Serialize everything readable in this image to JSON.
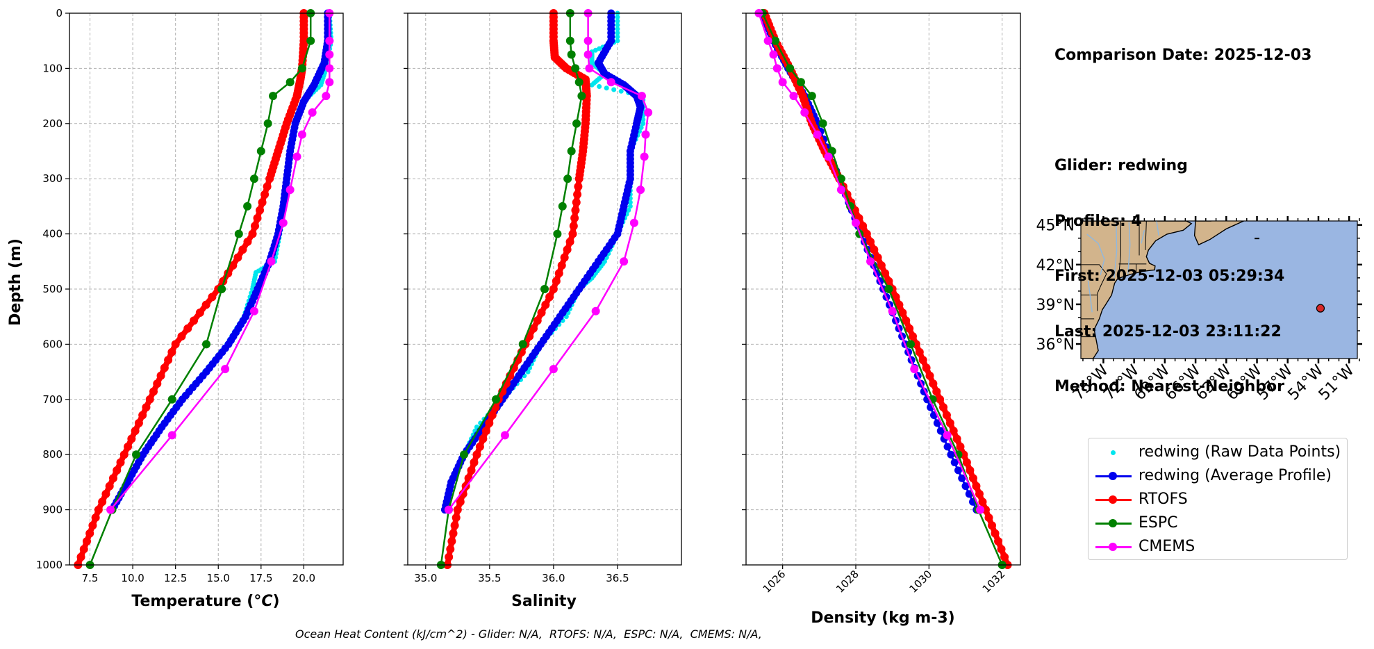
{
  "info": {
    "comparison_date": "Comparison Date: 2025-12-03",
    "glider": "Glider: redwing",
    "profiles": "Profiles: 4",
    "first": "First: 2025-12-03 05:29:34",
    "last": "Last: 2025-12-03 23:11:22",
    "method": "Method: Nearest-Neighbor"
  },
  "caption": "Ocean Heat Content (kJ/cm^2) - Glider: N/A,  RTOFS: N/A,  ESPC: N/A,  CMEMS: N/A,",
  "legend": [
    {
      "key": "raw",
      "label": "redwing (Raw Data Points)",
      "color": "#00e5ee"
    },
    {
      "key": "avg",
      "label": "redwing (Average Profile)",
      "color": "#0000ee"
    },
    {
      "key": "rtofs",
      "label": "RTOFS",
      "color": "#ff0000"
    },
    {
      "key": "espc",
      "label": "ESPC",
      "color": "#008000"
    },
    {
      "key": "cmems",
      "label": "CMEMS",
      "color": "#ff00ff"
    }
  ],
  "colors": {
    "raw": "#00e5ee",
    "avg": "#0000ee",
    "rtofs": "#ff0000",
    "espc": "#008000",
    "cmems": "#ff00ff",
    "land": "#d2b48c",
    "ocean": "#9ab6e2",
    "glider_marker": "#d62728"
  },
  "chart_data": [
    {
      "type": "line",
      "title": "",
      "xlabel": "Temperature (°C)",
      "ylabel": "Depth (m)",
      "xlim": [
        6.3,
        22.3
      ],
      "ylim": [
        1000,
        0
      ],
      "xticks": [
        "7.5",
        "10.0",
        "12.5",
        "15.0",
        "17.5",
        "20.0"
      ],
      "xtick_values": [
        7.5,
        10.0,
        12.5,
        15.0,
        17.5,
        20.0
      ],
      "yticks": [
        "0",
        "100",
        "200",
        "300",
        "400",
        "500",
        "600",
        "700",
        "800",
        "900",
        "1000"
      ],
      "grid": true,
      "series": [
        {
          "name": "redwing (Raw Data Points)",
          "key": "raw",
          "depth": [
            0,
            50,
            100,
            130,
            160,
            200,
            250,
            300,
            350,
            400,
            450,
            470,
            500,
            550,
            600,
            650,
            700,
            750,
            800,
            850,
            900
          ],
          "values": [
            21.5,
            21.6,
            21.3,
            21.0,
            20.0,
            19.5,
            19.2,
            19.0,
            18.9,
            18.6,
            18.3,
            17.2,
            17.0,
            16.5,
            15.5,
            14.2,
            12.8,
            11.6,
            10.6,
            9.6,
            8.8
          ]
        },
        {
          "name": "redwing (Average Profile)",
          "key": "avg",
          "depth": [
            0,
            50,
            90,
            130,
            160,
            200,
            250,
            300,
            350,
            400,
            450,
            500,
            550,
            600,
            650,
            700,
            750,
            800,
            850,
            900
          ],
          "values": [
            21.4,
            21.4,
            21.2,
            20.6,
            20.0,
            19.5,
            19.2,
            19.0,
            18.8,
            18.5,
            18.0,
            17.3,
            16.6,
            15.6,
            14.3,
            12.9,
            11.7,
            10.6,
            9.7,
            8.8
          ]
        },
        {
          "name": "RTOFS",
          "key": "rtofs",
          "depth": [
            0,
            50,
            100,
            120,
            150,
            200,
            250,
            300,
            400,
            500,
            600,
            700,
            800,
            900,
            1000
          ],
          "values": [
            20.0,
            20.0,
            19.9,
            19.8,
            19.6,
            19.0,
            18.5,
            18.0,
            17.0,
            15.0,
            12.5,
            11.0,
            9.5,
            8.0,
            6.8
          ]
        },
        {
          "name": "ESPC",
          "key": "espc",
          "depth": [
            0,
            50,
            100,
            125,
            150,
            200,
            250,
            300,
            350,
            400,
            500,
            600,
            700,
            800,
            900,
            1000
          ],
          "values": [
            20.4,
            20.4,
            19.9,
            19.2,
            18.2,
            17.9,
            17.5,
            17.1,
            16.7,
            16.2,
            15.2,
            14.3,
            12.3,
            10.2,
            8.8,
            7.5
          ]
        },
        {
          "name": "CMEMS",
          "key": "cmems",
          "depth": [
            0,
            50,
            75,
            100,
            125,
            150,
            180,
            220,
            260,
            320,
            380,
            450,
            540,
            645,
            765,
            900
          ],
          "values": [
            21.5,
            21.5,
            21.5,
            21.5,
            21.5,
            21.3,
            20.5,
            19.9,
            19.6,
            19.2,
            18.8,
            18.1,
            17.1,
            15.4,
            12.3,
            8.7
          ]
        }
      ]
    },
    {
      "type": "line",
      "title": "",
      "xlabel": "Salinity",
      "ylabel": "",
      "xlim": [
        34.86,
        37.0
      ],
      "ylim": [
        1000,
        0
      ],
      "xticks": [
        "35.0",
        "35.5",
        "36.0",
        "36.5"
      ],
      "xtick_values": [
        35.0,
        35.5,
        36.0,
        36.5
      ],
      "yticks": [
        "0",
        "100",
        "200",
        "300",
        "400",
        "500",
        "600",
        "700",
        "800",
        "900",
        "1000"
      ],
      "grid": true,
      "series": [
        {
          "name": "redwing (Raw Data Points)",
          "key": "raw",
          "depth": [
            0,
            50,
            70,
            90,
            110,
            130,
            150,
            200,
            250,
            300,
            350,
            400,
            450,
            480,
            500,
            550,
            600,
            650,
            700,
            750,
            800,
            850,
            900
          ],
          "values": [
            36.5,
            36.5,
            36.3,
            36.3,
            36.4,
            36.3,
            36.7,
            36.7,
            36.6,
            36.6,
            36.6,
            36.5,
            36.4,
            36.3,
            36.2,
            36.1,
            35.9,
            35.8,
            35.6,
            35.4,
            35.3,
            35.2,
            35.15
          ]
        },
        {
          "name": "redwing (Average Profile)",
          "key": "avg",
          "depth": [
            0,
            50,
            90,
            110,
            130,
            150,
            170,
            200,
            250,
            300,
            350,
            400,
            450,
            500,
            550,
            600,
            650,
            700,
            750,
            800,
            850,
            900
          ],
          "values": [
            36.45,
            36.45,
            36.35,
            36.4,
            36.55,
            36.65,
            36.68,
            36.65,
            36.6,
            36.6,
            36.55,
            36.5,
            36.35,
            36.2,
            36.05,
            35.9,
            35.75,
            35.6,
            35.45,
            35.3,
            35.2,
            35.15
          ]
        },
        {
          "name": "RTOFS",
          "key": "rtofs",
          "depth": [
            0,
            50,
            80,
            100,
            120,
            150,
            200,
            250,
            300,
            400,
            500,
            600,
            700,
            800,
            900,
            1000
          ],
          "values": [
            36.0,
            36.0,
            36.01,
            36.1,
            36.25,
            36.26,
            36.25,
            36.23,
            36.2,
            36.15,
            36.0,
            35.78,
            35.57,
            35.4,
            35.25,
            35.17
          ]
        },
        {
          "name": "ESPC",
          "key": "espc",
          "depth": [
            0,
            50,
            75,
            100,
            125,
            150,
            200,
            250,
            300,
            350,
            400,
            500,
            600,
            700,
            800,
            900,
            1000
          ],
          "values": [
            36.13,
            36.13,
            36.14,
            36.17,
            36.2,
            36.22,
            36.18,
            36.14,
            36.11,
            36.07,
            36.03,
            35.93,
            35.76,
            35.55,
            35.3,
            35.18,
            35.12
          ]
        },
        {
          "name": "CMEMS",
          "key": "cmems",
          "depth": [
            0,
            50,
            75,
            100,
            125,
            150,
            180,
            220,
            260,
            320,
            380,
            450,
            540,
            645,
            765,
            900
          ],
          "values": [
            36.27,
            36.27,
            36.27,
            36.28,
            36.45,
            36.69,
            36.74,
            36.72,
            36.71,
            36.68,
            36.63,
            36.55,
            36.33,
            36.0,
            35.62,
            35.18
          ]
        }
      ]
    },
    {
      "type": "line",
      "title": "",
      "xlabel": "Density (kg m-3)",
      "ylabel": "",
      "xlim": [
        1025.0,
        1032.5
      ],
      "ylim": [
        1000,
        0
      ],
      "xticks": [
        "1026",
        "1028",
        "1030",
        "1032"
      ],
      "xtick_values": [
        1026,
        1028,
        1030,
        1032
      ],
      "yticks": [
        "0",
        "100",
        "200",
        "300",
        "400",
        "500",
        "600",
        "700",
        "800",
        "900",
        "1000"
      ],
      "grid": true,
      "series": [
        {
          "name": "redwing (Raw Data Points)",
          "key": "raw",
          "depth": [
            0,
            50,
            100,
            150,
            200,
            300,
            400,
            500,
            600,
            700,
            800,
            900
          ],
          "values": [
            1025.45,
            1025.75,
            1026.15,
            1026.6,
            1026.95,
            1027.55,
            1028.15,
            1028.75,
            1029.35,
            1029.95,
            1030.6,
            1031.3
          ]
        },
        {
          "name": "redwing (Average Profile)",
          "key": "avg",
          "depth": [
            0,
            50,
            100,
            150,
            200,
            300,
            400,
            500,
            600,
            700,
            800,
            900
          ],
          "values": [
            1025.45,
            1025.75,
            1026.15,
            1026.6,
            1026.95,
            1027.55,
            1028.15,
            1028.75,
            1029.35,
            1029.95,
            1030.6,
            1031.3
          ]
        },
        {
          "name": "RTOFS",
          "key": "rtofs",
          "depth": [
            0,
            50,
            100,
            150,
            200,
            250,
            300,
            400,
            500,
            600,
            700,
            800,
            900,
            1000
          ],
          "values": [
            1025.5,
            1025.8,
            1026.2,
            1026.55,
            1026.8,
            1027.15,
            1027.55,
            1028.3,
            1029.0,
            1029.65,
            1030.3,
            1030.95,
            1031.55,
            1032.15
          ]
        },
        {
          "name": "ESPC",
          "key": "espc",
          "depth": [
            0,
            50,
            100,
            125,
            150,
            200,
            250,
            300,
            350,
            400,
            500,
            600,
            700,
            800,
            900,
            1000
          ],
          "values": [
            1025.45,
            1025.8,
            1026.2,
            1026.5,
            1026.8,
            1027.1,
            1027.35,
            1027.6,
            1027.85,
            1028.1,
            1028.9,
            1029.5,
            1030.1,
            1030.8,
            1031.35,
            1032.0
          ]
        },
        {
          "name": "CMEMS",
          "key": "cmems",
          "depth": [
            0,
            50,
            75,
            100,
            125,
            150,
            180,
            220,
            260,
            320,
            380,
            450,
            540,
            645,
            765,
            900
          ],
          "values": [
            1025.35,
            1025.6,
            1025.75,
            1025.85,
            1026.0,
            1026.3,
            1026.6,
            1026.95,
            1027.25,
            1027.6,
            1028.0,
            1028.4,
            1029.0,
            1029.6,
            1030.5,
            1031.4
          ]
        }
      ]
    }
  ],
  "map": {
    "lat_labels": [
      "45°N",
      "42°N",
      "39°N",
      "36°N"
    ],
    "lat_values": [
      45,
      42,
      39,
      36
    ],
    "lon_labels": [
      "75°W",
      "72°W",
      "69°W",
      "66°W",
      "63°W",
      "60°W",
      "57°W",
      "54°W",
      "51°W"
    ],
    "lon_values": [
      -75,
      -72,
      -69,
      -66,
      -63,
      -60,
      -57,
      -54,
      -51
    ],
    "extent": {
      "lon_min": -77.2,
      "lon_max": -50.2,
      "lat_min": 34.9,
      "lat_max": 45.3
    },
    "glider_position": {
      "lon": -53.8,
      "lat": 38.7
    }
  }
}
